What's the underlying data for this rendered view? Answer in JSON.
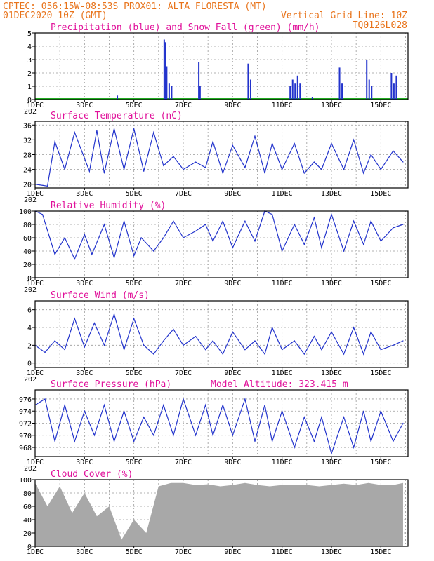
{
  "header": {
    "left_line1": "CPTEC:   056:15W-08:53S   PROX01: ALTA FLORESTA (MT)",
    "left_line2": "01DEC2020 10Z (GMT)",
    "right_line2": "Vertical Grid Line: 10Z",
    "right_line3": "TQ0126L028"
  },
  "x_ticks": [
    "1DEC",
    "3DEC",
    "5DEC",
    "7DEC",
    "9DEC",
    "11DEC",
    "13DEC",
    "15DEC"
  ],
  "stub_label": "202",
  "colors": {
    "line": "#2233cc",
    "snow": "#22aa22",
    "cloud": "#a8a8a8",
    "title": "#e0119a",
    "header": "#e8731a"
  },
  "panels": {
    "precip": {
      "title": "Precipitation (blue) and Snow Fall (green) (mm/h)",
      "yticks": [
        "5",
        "4",
        "3",
        "2",
        "1",
        "0"
      ]
    },
    "temp": {
      "title": "Surface Temperature (nC)",
      "yticks": [
        "36",
        "32",
        "28",
        "24",
        "20"
      ]
    },
    "rh": {
      "title": "Relative Humidity (%)",
      "yticks": [
        "100",
        "80",
        "60",
        "40",
        "20",
        "0"
      ]
    },
    "wind": {
      "title": "Surface Wind (m/s)",
      "yticks": [
        "6",
        "4",
        "2",
        "0"
      ]
    },
    "pres": {
      "title": "Surface Pressure (hPa)",
      "extra": "Model Altitude: 323.415 m",
      "yticks": [
        "976",
        "974",
        "972",
        "970",
        "968"
      ]
    },
    "cloud": {
      "title": "Cloud Cover (%)",
      "yticks": [
        "100",
        "80",
        "60",
        "40",
        "20",
        "0"
      ]
    }
  },
  "chart_data": [
    {
      "type": "bar",
      "title": "Precipitation (blue) and Snow Fall (green) (mm/h)",
      "x_days": [
        4.3,
        6.2,
        6.25,
        6.3,
        6.4,
        6.5,
        7.6,
        7.65,
        9.6,
        9.7,
        11.3,
        11.4,
        11.5,
        11.6,
        11.7,
        12.2,
        13.3,
        13.4,
        14.4,
        14.5,
        14.6,
        15.4,
        15.5,
        15.6
      ],
      "values": [
        0.3,
        4.5,
        4.3,
        2.5,
        1.2,
        1.0,
        2.8,
        1.0,
        2.7,
        1.5,
        1.0,
        1.5,
        1.2,
        1.8,
        1.2,
        0.2,
        2.4,
        1.2,
        3.0,
        1.5,
        1.0,
        2.0,
        1.2,
        1.8
      ],
      "ylim": [
        0,
        5
      ]
    },
    {
      "type": "line",
      "title": "Surface Temperature (nC)",
      "x_days": [
        1.0,
        1.5,
        1.8,
        2.2,
        2.6,
        3.2,
        3.5,
        3.8,
        4.2,
        4.6,
        5.0,
        5.4,
        5.8,
        6.2,
        6.6,
        7.0,
        7.5,
        7.9,
        8.2,
        8.6,
        9.0,
        9.5,
        9.9,
        10.3,
        10.6,
        11.0,
        11.5,
        11.9,
        12.3,
        12.6,
        13.0,
        13.5,
        13.9,
        14.3,
        14.6,
        15.0,
        15.5,
        15.9
      ],
      "values": [
        20,
        19.5,
        31.5,
        24,
        34,
        23.5,
        34.5,
        23,
        35,
        24,
        35,
        23.5,
        34,
        25,
        27.5,
        24,
        26,
        24.5,
        31.5,
        23,
        30.5,
        24.5,
        33,
        23,
        31,
        24,
        31,
        23,
        26,
        24,
        31,
        24,
        32,
        23,
        28,
        24,
        29,
        26
      ],
      "ylim": [
        19,
        37
      ]
    },
    {
      "type": "line",
      "title": "Relative Humidity (%)",
      "x_days": [
        1.0,
        1.3,
        1.8,
        2.2,
        2.6,
        3.0,
        3.3,
        3.8,
        4.2,
        4.6,
        5.0,
        5.3,
        5.8,
        6.2,
        6.6,
        7.0,
        7.5,
        7.9,
        8.2,
        8.6,
        9.0,
        9.5,
        9.9,
        10.3,
        10.6,
        11.0,
        11.5,
        11.9,
        12.3,
        12.6,
        13.0,
        13.5,
        13.9,
        14.3,
        14.6,
        15.0,
        15.5,
        15.9
      ],
      "values": [
        100,
        95,
        35,
        60,
        28,
        65,
        35,
        80,
        30,
        85,
        33,
        60,
        40,
        60,
        85,
        60,
        70,
        80,
        55,
        85,
        45,
        85,
        55,
        100,
        95,
        40,
        80,
        50,
        90,
        45,
        95,
        40,
        85,
        50,
        85,
        55,
        75,
        80
      ],
      "ylim": [
        0,
        100
      ]
    },
    {
      "type": "line",
      "title": "Surface Wind (m/s)",
      "x_days": [
        1.0,
        1.4,
        1.8,
        2.2,
        2.6,
        3.0,
        3.4,
        3.8,
        4.2,
        4.6,
        5.0,
        5.4,
        5.8,
        6.2,
        6.6,
        7.0,
        7.5,
        7.9,
        8.2,
        8.6,
        9.0,
        9.5,
        9.9,
        10.3,
        10.6,
        11.0,
        11.5,
        11.9,
        12.3,
        12.6,
        13.0,
        13.5,
        13.9,
        14.3,
        14.6,
        15.0,
        15.5,
        15.9
      ],
      "values": [
        2.0,
        1.2,
        2.5,
        1.5,
        5.0,
        1.8,
        4.5,
        2.0,
        5.5,
        1.5,
        5.0,
        2.0,
        1.0,
        2.5,
        3.8,
        2.0,
        3.0,
        1.5,
        2.5,
        1.0,
        3.5,
        1.5,
        2.5,
        1.0,
        4.0,
        1.5,
        2.5,
        1.0,
        3.0,
        1.5,
        3.5,
        1.0,
        4.0,
        1.0,
        3.5,
        1.5,
        2.0,
        2.5
      ],
      "ylim": [
        -0.5,
        7
      ]
    },
    {
      "type": "line",
      "title": "Surface Pressure (hPa)",
      "x_days": [
        1.0,
        1.4,
        1.8,
        2.2,
        2.6,
        3.0,
        3.4,
        3.8,
        4.2,
        4.6,
        5.0,
        5.4,
        5.8,
        6.2,
        6.6,
        7.0,
        7.5,
        7.9,
        8.2,
        8.6,
        9.0,
        9.5,
        9.9,
        10.3,
        10.6,
        11.0,
        11.5,
        11.9,
        12.3,
        12.6,
        13.0,
        13.5,
        13.9,
        14.3,
        14.6,
        15.0,
        15.5,
        15.9
      ],
      "values": [
        975,
        976,
        969,
        975,
        969,
        974,
        970,
        975,
        969,
        974,
        969,
        973,
        970,
        975,
        970,
        976,
        970,
        975,
        970,
        975,
        970,
        976,
        969,
        975,
        969,
        974,
        968,
        973,
        969,
        973,
        967,
        973,
        968,
        974,
        969,
        974,
        969,
        972
      ],
      "ylim": [
        966.5,
        977.5
      ]
    },
    {
      "type": "area",
      "title": "Cloud Cover (%)",
      "x_days": [
        1.0,
        1.5,
        2.0,
        2.5,
        3.0,
        3.5,
        4.0,
        4.5,
        5.0,
        5.5,
        6.0,
        6.5,
        7.0,
        7.5,
        8.0,
        8.5,
        9.0,
        9.5,
        10.0,
        10.5,
        11.0,
        11.5,
        12.0,
        12.5,
        13.0,
        13.5,
        14.0,
        14.5,
        15.0,
        15.5,
        15.9
      ],
      "values": [
        95,
        60,
        90,
        50,
        80,
        45,
        60,
        10,
        40,
        20,
        90,
        95,
        95,
        92,
        93,
        90,
        92,
        95,
        92,
        90,
        92,
        92,
        92,
        90,
        92,
        94,
        92,
        95,
        92,
        92,
        95
      ],
      "ylim": [
        0,
        100
      ]
    }
  ]
}
